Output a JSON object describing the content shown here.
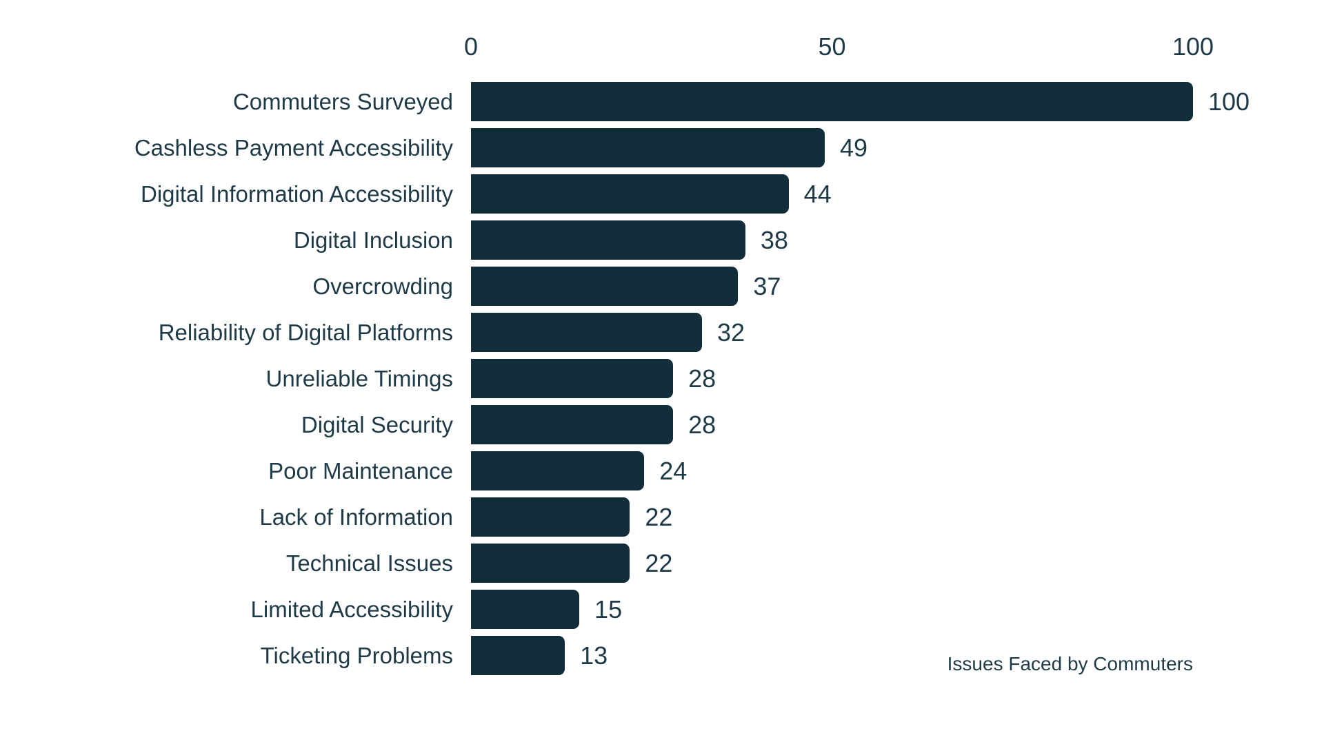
{
  "chart_data": {
    "type": "bar",
    "orientation": "horizontal",
    "title": "Issues Faced by Commuters",
    "xlabel": "",
    "ylabel": "",
    "categories": [
      "Commuters Surveyed",
      "Cashless Payment Accessibility",
      "Digital Information Accessibility",
      "Digital Inclusion",
      "Overcrowding",
      "Reliability of Digital Platforms",
      "Unreliable Timings",
      "Digital Security",
      "Poor Maintenance",
      "Lack of Information",
      "Technical Issues",
      "Limited Accessibility",
      "Ticketing Problems"
    ],
    "values": [
      100,
      49,
      44,
      38,
      37,
      32,
      28,
      28,
      24,
      22,
      22,
      15,
      13
    ],
    "value_labels_shown": true,
    "xlim": [
      0,
      100
    ],
    "x_ticks": [
      0,
      50,
      100
    ],
    "grid": false,
    "legend": false,
    "axis_position": "top",
    "bar_color": "#112e3a",
    "text_color": "#1f3a47",
    "background_color": "#ffffff"
  },
  "axis": {
    "tick_labels": [
      "0",
      "50",
      "100"
    ]
  }
}
